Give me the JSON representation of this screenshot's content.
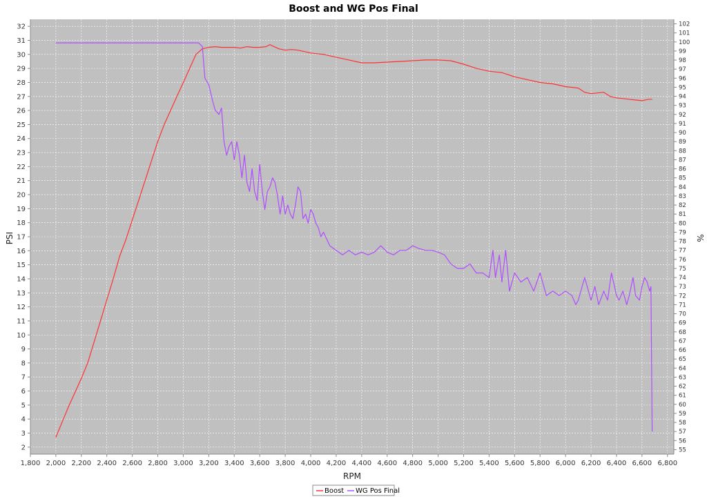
{
  "chart_data": {
    "type": "line",
    "title": "Boost and WG Pos Final",
    "xlabel": "RPM",
    "ylabel": "PSI",
    "y2label": "%",
    "xlim": [
      1800,
      6850
    ],
    "ylim": [
      1.5,
      32.5
    ],
    "y2lim": [
      54.5,
      102.5
    ],
    "xticks": [
      1800,
      2000,
      2200,
      2400,
      2600,
      2800,
      3000,
      3200,
      3400,
      3600,
      3800,
      4000,
      4200,
      4400,
      4600,
      4800,
      5000,
      5200,
      5400,
      5600,
      5800,
      6000,
      6200,
      6400,
      6600,
      6800
    ],
    "xtick_labels": [
      "1,800",
      "2,000",
      "2,200",
      "2,400",
      "2,600",
      "2,800",
      "3,000",
      "3,200",
      "3,400",
      "3,600",
      "3,800",
      "4,000",
      "4,200",
      "4,400",
      "4,600",
      "4,800",
      "5,000",
      "5,200",
      "5,400",
      "5,600",
      "5,800",
      "6,000",
      "6,200",
      "6,400",
      "6,600",
      "6,800"
    ],
    "yticks": [
      2,
      3,
      4,
      5,
      6,
      7,
      8,
      9,
      10,
      11,
      12,
      13,
      14,
      15,
      16,
      17,
      18,
      19,
      20,
      21,
      22,
      23,
      24,
      25,
      26,
      27,
      28,
      29,
      30,
      31,
      32
    ],
    "y2ticks": [
      55,
      56,
      57,
      58,
      59,
      60,
      61,
      62,
      63,
      64,
      65,
      66,
      67,
      68,
      69,
      70,
      71,
      72,
      73,
      74,
      75,
      76,
      77,
      78,
      79,
      80,
      81,
      82,
      83,
      84,
      85,
      86,
      87,
      88,
      89,
      90,
      91,
      92,
      93,
      94,
      95,
      96,
      97,
      98,
      99,
      100,
      101,
      102
    ],
    "grid": true,
    "legend_position": "bottom-center",
    "plot_background": "#c0c0c0",
    "series": [
      {
        "name": "Boost",
        "axis": "left",
        "color": "#ff3030",
        "x": [
          2000,
          2050,
          2100,
          2150,
          2200,
          2250,
          2300,
          2350,
          2400,
          2450,
          2500,
          2550,
          2600,
          2650,
          2700,
          2750,
          2800,
          2850,
          2900,
          2950,
          3000,
          3050,
          3100,
          3150,
          3200,
          3250,
          3300,
          3350,
          3400,
          3450,
          3500,
          3550,
          3600,
          3650,
          3680,
          3700,
          3750,
          3800,
          3850,
          3900,
          3950,
          4000,
          4100,
          4200,
          4300,
          4400,
          4500,
          4600,
          4700,
          4800,
          4900,
          5000,
          5100,
          5200,
          5300,
          5400,
          5500,
          5600,
          5700,
          5800,
          5900,
          6000,
          6100,
          6150,
          6200,
          6300,
          6350,
          6400,
          6500,
          6550,
          6600,
          6650,
          6680
        ],
        "y": [
          2.7,
          3.8,
          4.9,
          5.9,
          6.9,
          8.0,
          9.5,
          11.0,
          12.5,
          14.0,
          15.6,
          16.8,
          18.2,
          19.6,
          21.0,
          22.4,
          23.8,
          25.0,
          26.0,
          27.0,
          28.0,
          29.0,
          30.0,
          30.4,
          30.5,
          30.55,
          30.5,
          30.5,
          30.5,
          30.45,
          30.55,
          30.5,
          30.5,
          30.55,
          30.7,
          30.6,
          30.4,
          30.3,
          30.35,
          30.3,
          30.2,
          30.1,
          30.0,
          29.8,
          29.6,
          29.4,
          29.4,
          29.45,
          29.5,
          29.55,
          29.6,
          29.6,
          29.55,
          29.3,
          29.0,
          28.8,
          28.7,
          28.4,
          28.2,
          28.0,
          27.9,
          27.7,
          27.6,
          27.3,
          27.2,
          27.3,
          27.0,
          26.9,
          26.8,
          26.75,
          26.7,
          26.8,
          26.8
        ]
      },
      {
        "name": "WG Pos Final",
        "axis": "right",
        "color": "#b04cff",
        "x": [
          2000,
          2500,
          3000,
          3120,
          3150,
          3170,
          3200,
          3230,
          3250,
          3280,
          3300,
          3320,
          3340,
          3360,
          3380,
          3400,
          3420,
          3440,
          3460,
          3480,
          3500,
          3520,
          3540,
          3560,
          3580,
          3600,
          3620,
          3640,
          3660,
          3680,
          3700,
          3720,
          3740,
          3760,
          3780,
          3800,
          3820,
          3840,
          3860,
          3880,
          3900,
          3920,
          3940,
          3960,
          3980,
          4000,
          4020,
          4040,
          4060,
          4080,
          4100,
          4150,
          4200,
          4250,
          4300,
          4350,
          4400,
          4450,
          4500,
          4550,
          4600,
          4650,
          4700,
          4750,
          4800,
          4850,
          4900,
          4950,
          5000,
          5050,
          5100,
          5150,
          5200,
          5250,
          5300,
          5350,
          5400,
          5430,
          5450,
          5480,
          5500,
          5530,
          5560,
          5600,
          5650,
          5700,
          5750,
          5800,
          5850,
          5900,
          5950,
          6000,
          6050,
          6080,
          6100,
          6150,
          6200,
          6230,
          6260,
          6300,
          6330,
          6360,
          6400,
          6420,
          6450,
          6480,
          6500,
          6530,
          6550,
          6580,
          6600,
          6620,
          6640,
          6650,
          6660,
          6670,
          6680
        ],
        "y": [
          99.9,
          99.9,
          99.9,
          99.9,
          99.5,
          96.0,
          95.3,
          93.5,
          92.5,
          92.0,
          92.7,
          89.0,
          87.5,
          88.5,
          89.0,
          87.0,
          89.0,
          87.5,
          85.0,
          87.5,
          84.5,
          83.5,
          86.0,
          83.5,
          82.5,
          86.5,
          83.5,
          81.5,
          83.5,
          84.0,
          85.0,
          84.5,
          83.0,
          81.0,
          83.0,
          81.0,
          82.0,
          81.0,
          80.5,
          82.0,
          84.0,
          83.5,
          80.5,
          81.0,
          80.0,
          81.5,
          81.0,
          80.0,
          79.5,
          78.5,
          79.0,
          77.5,
          77.0,
          76.5,
          77.0,
          76.5,
          76.8,
          76.5,
          76.8,
          77.5,
          76.8,
          76.5,
          77.0,
          77.0,
          77.5,
          77.2,
          77.0,
          77.0,
          76.8,
          76.5,
          75.5,
          75.0,
          75.0,
          75.5,
          74.5,
          74.5,
          74.0,
          77.0,
          74.0,
          76.5,
          73.5,
          77.0,
          72.5,
          74.5,
          73.5,
          74.0,
          72.5,
          74.5,
          72.0,
          72.5,
          72.0,
          72.5,
          72.0,
          71.0,
          71.5,
          74.0,
          71.5,
          73.0,
          71.0,
          72.5,
          71.5,
          74.5,
          72.0,
          71.5,
          72.5,
          71.0,
          72.0,
          74.0,
          72.0,
          71.5,
          73.0,
          74.0,
          73.5,
          73.0,
          72.5,
          73.0,
          57.0
        ]
      }
    ]
  }
}
